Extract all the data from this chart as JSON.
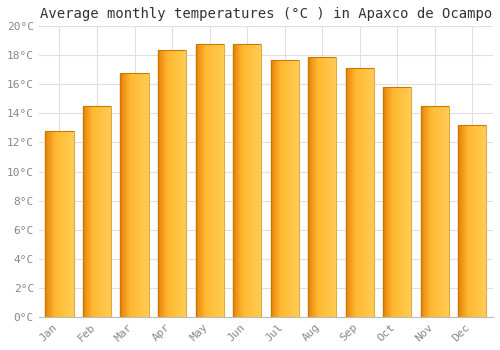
{
  "title": "Average monthly temperatures (°C ) in Apaxco de Ocampo",
  "months": [
    "Jan",
    "Feb",
    "Mar",
    "Apr",
    "May",
    "Jun",
    "Jul",
    "Aug",
    "Sep",
    "Oct",
    "Nov",
    "Dec"
  ],
  "values": [
    12.8,
    14.5,
    16.8,
    18.4,
    18.8,
    18.8,
    17.7,
    17.9,
    17.1,
    15.8,
    14.5,
    13.2
  ],
  "bar_color_left": "#E8820A",
  "bar_color_mid": "#FFB830",
  "bar_color_right": "#FFCC55",
  "bar_edge_color": "#CC7700",
  "background_color": "#ffffff",
  "grid_color": "#e0e0e0",
  "ylim": [
    0,
    20
  ],
  "yticks": [
    0,
    2,
    4,
    6,
    8,
    10,
    12,
    14,
    16,
    18,
    20
  ],
  "ytick_labels": [
    "0°C",
    "2°C",
    "4°C",
    "6°C",
    "8°C",
    "10°C",
    "12°C",
    "14°C",
    "16°C",
    "18°C",
    "20°C"
  ],
  "title_fontsize": 10,
  "tick_fontsize": 8,
  "tick_color": "#888888",
  "title_color": "#333333",
  "title_font": "monospace",
  "bar_width": 0.75,
  "n_grad": 80
}
